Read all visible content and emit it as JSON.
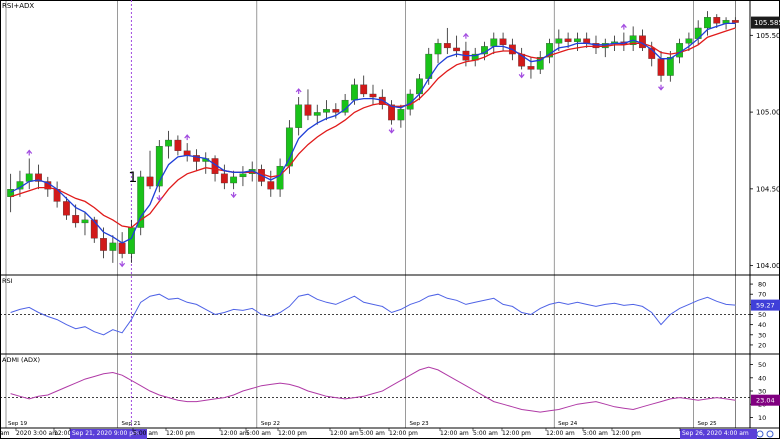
{
  "window_title": "RSI+ADX",
  "colors": {
    "up": "#19c219",
    "down": "#d11a1a",
    "wick": "#222222",
    "ema_fast": "#1f3fd8",
    "ema_slow": "#e01b1b",
    "rsi_line": "#4f63e6",
    "adx_line": "#b03aa6",
    "marker_line": "#a24be0",
    "price_tag_bg": "#1c1c1c",
    "price_tag_text": "#ffffff",
    "indicator_tag_bg": "#3f3fd8",
    "adx_tag_bg": "#800080",
    "grid": "#000000"
  },
  "annotation_label": "1",
  "panels": {
    "price": {
      "label": "RSI+ADX",
      "current_price_label": "105.585",
      "y_ticks": [
        "105.502",
        "105.002",
        "104.502",
        "104.002"
      ]
    },
    "rsi": {
      "label": "RSI",
      "current_value_label": "59.27",
      "y_ticks": [
        "80",
        "70",
        "60",
        "50",
        "40",
        "30",
        "20"
      ]
    },
    "adx": {
      "label": "ADMI (ADX)",
      "current_value_label": "23.04",
      "y_ticks": [
        "50",
        "40",
        "30",
        "20",
        "10"
      ]
    }
  },
  "day_labels": [
    "Sep 19",
    "Sep 21",
    "Sep 22",
    "Sep 23",
    "Sep 24",
    "Sep 25"
  ],
  "time_axis": {
    "labels": [
      "am",
      "2020 3:00 am",
      "12:00 pm",
      "Sep 21, 2020 9:00 pm",
      "5:00 am",
      "12:00 pm",
      "12:00 am",
      "5:00 am",
      "12:00 pm",
      "12:00 am",
      "5:00 am",
      "12:00 pm",
      "12:00 am",
      "5:00 am",
      "12:00 pm",
      "12:00 am",
      "5:00 am",
      "12:00 pm",
      "Sep 26, 2020 4:00 am"
    ],
    "highlight_left": "Sep 21, 2020 9:00 pm",
    "highlight_right": "Sep 26, 2020 4:00 am"
  },
  "chart_data": [
    {
      "type": "candlestick",
      "title": "RSI+ADX",
      "ylim": [
        103.98,
        105.68
      ],
      "candles": [
        {
          "o": 104.45,
          "h": 104.6,
          "l": 104.35,
          "c": 104.5
        },
        {
          "o": 104.5,
          "h": 104.62,
          "l": 104.45,
          "c": 104.55
        },
        {
          "o": 104.55,
          "h": 104.7,
          "l": 104.5,
          "c": 104.6
        },
        {
          "o": 104.6,
          "h": 104.66,
          "l": 104.5,
          "c": 104.55
        },
        {
          "o": 104.55,
          "h": 104.58,
          "l": 104.45,
          "c": 104.5
        },
        {
          "o": 104.5,
          "h": 104.55,
          "l": 104.38,
          "c": 104.42
        },
        {
          "o": 104.42,
          "h": 104.45,
          "l": 104.3,
          "c": 104.33
        },
        {
          "o": 104.33,
          "h": 104.4,
          "l": 104.25,
          "c": 104.28
        },
        {
          "o": 104.28,
          "h": 104.35,
          "l": 104.2,
          "c": 104.3
        },
        {
          "o": 104.3,
          "h": 104.32,
          "l": 104.15,
          "c": 104.18
        },
        {
          "o": 104.18,
          "h": 104.25,
          "l": 104.05,
          "c": 104.1
        },
        {
          "o": 104.1,
          "h": 104.2,
          "l": 104.02,
          "c": 104.15
        },
        {
          "o": 104.15,
          "h": 104.22,
          "l": 104.05,
          "c": 104.08
        },
        {
          "o": 104.08,
          "h": 104.3,
          "l": 104.02,
          "c": 104.25
        },
        {
          "o": 104.25,
          "h": 104.62,
          "l": 104.2,
          "c": 104.58
        },
        {
          "o": 104.58,
          "h": 104.75,
          "l": 104.5,
          "c": 104.52
        },
        {
          "o": 104.52,
          "h": 104.82,
          "l": 104.48,
          "c": 104.78
        },
        {
          "o": 104.78,
          "h": 104.88,
          "l": 104.7,
          "c": 104.82
        },
        {
          "o": 104.82,
          "h": 104.85,
          "l": 104.72,
          "c": 104.75
        },
        {
          "o": 104.75,
          "h": 104.8,
          "l": 104.68,
          "c": 104.72
        },
        {
          "o": 104.72,
          "h": 104.76,
          "l": 104.62,
          "c": 104.68
        },
        {
          "o": 104.68,
          "h": 104.74,
          "l": 104.6,
          "c": 104.7
        },
        {
          "o": 104.7,
          "h": 104.72,
          "l": 104.55,
          "c": 104.6
        },
        {
          "o": 104.6,
          "h": 104.66,
          "l": 104.5,
          "c": 104.54
        },
        {
          "o": 104.54,
          "h": 104.62,
          "l": 104.5,
          "c": 104.58
        },
        {
          "o": 104.58,
          "h": 104.65,
          "l": 104.52,
          "c": 104.6
        },
        {
          "o": 104.6,
          "h": 104.68,
          "l": 104.55,
          "c": 104.63
        },
        {
          "o": 104.63,
          "h": 104.66,
          "l": 104.52,
          "c": 104.55
        },
        {
          "o": 104.55,
          "h": 104.62,
          "l": 104.45,
          "c": 104.5
        },
        {
          "o": 104.5,
          "h": 104.7,
          "l": 104.45,
          "c": 104.65
        },
        {
          "o": 104.65,
          "h": 104.95,
          "l": 104.6,
          "c": 104.9
        },
        {
          "o": 104.9,
          "h": 105.1,
          "l": 104.85,
          "c": 105.05
        },
        {
          "o": 105.05,
          "h": 105.15,
          "l": 104.95,
          "c": 104.98
        },
        {
          "o": 104.98,
          "h": 105.05,
          "l": 104.92,
          "c": 105.0
        },
        {
          "o": 105.0,
          "h": 105.08,
          "l": 104.95,
          "c": 105.02
        },
        {
          "o": 105.02,
          "h": 105.06,
          "l": 104.96,
          "c": 105.0
        },
        {
          "o": 105.0,
          "h": 105.12,
          "l": 104.98,
          "c": 105.08
        },
        {
          "o": 105.08,
          "h": 105.22,
          "l": 105.05,
          "c": 105.18
        },
        {
          "o": 105.18,
          "h": 105.24,
          "l": 105.1,
          "c": 105.12
        },
        {
          "o": 105.12,
          "h": 105.18,
          "l": 105.05,
          "c": 105.1
        },
        {
          "o": 105.1,
          "h": 105.15,
          "l": 105.02,
          "c": 105.05
        },
        {
          "o": 105.05,
          "h": 105.08,
          "l": 104.92,
          "c": 104.95
        },
        {
          "o": 104.95,
          "h": 105.05,
          "l": 104.9,
          "c": 105.02
        },
        {
          "o": 105.02,
          "h": 105.15,
          "l": 104.98,
          "c": 105.12
        },
        {
          "o": 105.12,
          "h": 105.25,
          "l": 105.08,
          "c": 105.22
        },
        {
          "o": 105.22,
          "h": 105.42,
          "l": 105.18,
          "c": 105.38
        },
        {
          "o": 105.38,
          "h": 105.48,
          "l": 105.32,
          "c": 105.45
        },
        {
          "o": 105.45,
          "h": 105.55,
          "l": 105.38,
          "c": 105.42
        },
        {
          "o": 105.42,
          "h": 105.5,
          "l": 105.36,
          "c": 105.4
        },
        {
          "o": 105.4,
          "h": 105.46,
          "l": 105.3,
          "c": 105.34
        },
        {
          "o": 105.34,
          "h": 105.42,
          "l": 105.3,
          "c": 105.38
        },
        {
          "o": 105.38,
          "h": 105.46,
          "l": 105.34,
          "c": 105.43
        },
        {
          "o": 105.43,
          "h": 105.52,
          "l": 105.38,
          "c": 105.48
        },
        {
          "o": 105.48,
          "h": 105.52,
          "l": 105.4,
          "c": 105.44
        },
        {
          "o": 105.44,
          "h": 105.48,
          "l": 105.34,
          "c": 105.38
        },
        {
          "o": 105.38,
          "h": 105.42,
          "l": 105.28,
          "c": 105.3
        },
        {
          "o": 105.3,
          "h": 105.36,
          "l": 105.22,
          "c": 105.28
        },
        {
          "o": 105.28,
          "h": 105.4,
          "l": 105.25,
          "c": 105.36
        },
        {
          "o": 105.36,
          "h": 105.48,
          "l": 105.32,
          "c": 105.45
        },
        {
          "o": 105.45,
          "h": 105.54,
          "l": 105.4,
          "c": 105.48
        },
        {
          "o": 105.48,
          "h": 105.52,
          "l": 105.42,
          "c": 105.46
        },
        {
          "o": 105.46,
          "h": 105.52,
          "l": 105.4,
          "c": 105.48
        },
        {
          "o": 105.48,
          "h": 105.52,
          "l": 105.42,
          "c": 105.45
        },
        {
          "o": 105.45,
          "h": 105.5,
          "l": 105.38,
          "c": 105.42
        },
        {
          "o": 105.42,
          "h": 105.48,
          "l": 105.36,
          "c": 105.45
        },
        {
          "o": 105.45,
          "h": 105.5,
          "l": 105.4,
          "c": 105.46
        },
        {
          "o": 105.46,
          "h": 105.52,
          "l": 105.4,
          "c": 105.44
        },
        {
          "o": 105.44,
          "h": 105.56,
          "l": 105.4,
          "c": 105.5
        },
        {
          "o": 105.5,
          "h": 105.54,
          "l": 105.4,
          "c": 105.42
        },
        {
          "o": 105.42,
          "h": 105.46,
          "l": 105.3,
          "c": 105.35
        },
        {
          "o": 105.35,
          "h": 105.4,
          "l": 105.2,
          "c": 105.24
        },
        {
          "o": 105.24,
          "h": 105.4,
          "l": 105.2,
          "c": 105.36
        },
        {
          "o": 105.36,
          "h": 105.48,
          "l": 105.32,
          "c": 105.45
        },
        {
          "o": 105.45,
          "h": 105.52,
          "l": 105.4,
          "c": 105.48
        },
        {
          "o": 105.48,
          "h": 105.6,
          "l": 105.44,
          "c": 105.55
        },
        {
          "o": 105.55,
          "h": 105.66,
          "l": 105.5,
          "c": 105.62
        },
        {
          "o": 105.62,
          "h": 105.64,
          "l": 105.55,
          "c": 105.58
        },
        {
          "o": 105.58,
          "h": 105.62,
          "l": 105.54,
          "c": 105.6
        },
        {
          "o": 105.6,
          "h": 105.62,
          "l": 105.55,
          "c": 105.585
        }
      ],
      "ema_fast": [
        104.48,
        104.51,
        104.55,
        104.56,
        104.54,
        104.5,
        104.44,
        104.38,
        104.35,
        104.29,
        104.22,
        104.19,
        104.15,
        104.18,
        104.32,
        104.4,
        104.55,
        104.66,
        104.71,
        104.72,
        104.71,
        104.7,
        104.66,
        104.62,
        104.61,
        104.61,
        104.62,
        104.59,
        104.56,
        104.59,
        104.7,
        104.83,
        104.89,
        104.93,
        104.96,
        104.98,
        105.02,
        105.08,
        105.09,
        105.09,
        105.08,
        105.04,
        105.03,
        105.06,
        105.12,
        105.22,
        105.31,
        105.36,
        105.38,
        105.37,
        105.37,
        105.39,
        105.43,
        105.43,
        105.41,
        105.37,
        105.33,
        105.34,
        105.38,
        105.42,
        105.43,
        105.45,
        105.45,
        105.44,
        105.44,
        105.45,
        105.45,
        105.47,
        105.45,
        105.41,
        105.35,
        105.35,
        105.39,
        105.43,
        105.48,
        105.54,
        105.56,
        105.58,
        105.58
      ],
      "ema_slow": [
        104.45,
        104.47,
        104.49,
        104.51,
        104.51,
        104.5,
        104.47,
        104.44,
        104.42,
        104.38,
        104.33,
        104.3,
        104.26,
        104.25,
        104.3,
        104.34,
        104.42,
        104.5,
        104.56,
        104.6,
        104.62,
        104.64,
        104.63,
        104.62,
        104.61,
        104.61,
        104.61,
        104.6,
        104.58,
        104.59,
        104.65,
        104.73,
        104.79,
        104.84,
        104.88,
        104.91,
        104.95,
        105.0,
        105.03,
        105.05,
        105.06,
        105.04,
        105.04,
        105.05,
        105.09,
        105.15,
        105.22,
        105.27,
        105.31,
        105.33,
        105.34,
        105.36,
        105.39,
        105.4,
        105.4,
        105.38,
        105.36,
        105.35,
        105.37,
        105.39,
        105.41,
        105.42,
        105.43,
        105.43,
        105.43,
        105.44,
        105.44,
        105.45,
        105.45,
        105.43,
        105.39,
        105.38,
        105.39,
        105.41,
        105.44,
        105.49,
        105.51,
        105.53,
        105.55
      ],
      "arrows_up": [
        2,
        19,
        31,
        49,
        66
      ],
      "arrows_down": [
        12,
        16,
        24,
        41,
        55,
        70
      ],
      "marker_index": 13,
      "marker_label": "1"
    },
    {
      "type": "line",
      "title": "RSI",
      "ylim": [
        15,
        85
      ],
      "y_ticks": [
        80,
        70,
        60,
        50,
        40,
        30,
        20
      ],
      "reference_line": 50,
      "series": [
        {
          "values": [
            52,
            55,
            57,
            52,
            48,
            45,
            40,
            36,
            38,
            33,
            30,
            35,
            32,
            45,
            62,
            68,
            70,
            65,
            66,
            62,
            60,
            55,
            50,
            52,
            55,
            54,
            56,
            50,
            48,
            52,
            58,
            68,
            70,
            65,
            62,
            60,
            64,
            68,
            62,
            60,
            58,
            52,
            55,
            60,
            63,
            68,
            70,
            66,
            64,
            60,
            62,
            64,
            66,
            60,
            58,
            52,
            50,
            56,
            60,
            62,
            60,
            62,
            60,
            58,
            60,
            61,
            59,
            60,
            58,
            52,
            40,
            50,
            56,
            60,
            64,
            67,
            63,
            60,
            59.27
          ]
        }
      ],
      "current_value": 59.27
    },
    {
      "type": "line",
      "title": "ADMI (ADX)",
      "ylim": [
        5,
        55
      ],
      "y_ticks": [
        50,
        40,
        30,
        20,
        10
      ],
      "reference_line": 25,
      "series": [
        {
          "values": [
            28,
            26,
            24,
            26,
            27,
            30,
            33,
            36,
            39,
            41,
            43,
            44,
            42,
            38,
            34,
            30,
            27,
            25,
            23,
            22,
            22,
            23,
            24,
            25,
            27,
            30,
            32,
            34,
            35,
            36,
            35,
            33,
            30,
            28,
            26,
            25,
            24,
            25,
            26,
            28,
            30,
            34,
            38,
            42,
            46,
            48,
            46,
            42,
            38,
            34,
            30,
            26,
            22,
            20,
            18,
            16,
            15,
            14,
            15,
            16,
            18,
            20,
            21,
            22,
            20,
            18,
            17,
            16,
            18,
            20,
            22,
            24,
            25,
            24,
            23,
            24,
            25,
            24,
            23.04
          ]
        }
      ],
      "current_value": 23.04
    }
  ]
}
